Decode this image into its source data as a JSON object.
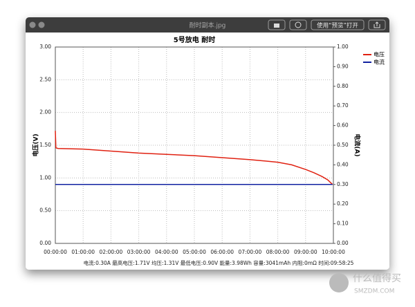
{
  "window": {
    "title": "耐时副本.jpg",
    "open_button": "使用“预览”打开"
  },
  "chart_data": {
    "type": "line",
    "title": "5号放电 耐时",
    "y_label": "电压(V)",
    "y2_label": "电流(A)",
    "x": [
      0,
      0.02,
      0.1,
      1,
      2,
      3,
      4,
      5,
      6,
      7,
      8,
      8.5,
      9,
      9.3,
      9.6,
      9.8,
      9.97
    ],
    "series": [
      {
        "name": "电压",
        "color": "#e02010",
        "values": [
          1.72,
          1.46,
          1.45,
          1.44,
          1.41,
          1.38,
          1.36,
          1.34,
          1.31,
          1.28,
          1.24,
          1.2,
          1.13,
          1.08,
          1.02,
          0.97,
          0.9
        ]
      },
      {
        "name": "电流",
        "color": "#1020a0",
        "axis": "y2",
        "values": [
          0.3,
          0.3,
          0.3,
          0.3,
          0.3,
          0.3,
          0.3,
          0.3,
          0.3,
          0.3,
          0.3,
          0.3,
          0.3,
          0.3,
          0.3,
          0.3,
          0.3
        ]
      }
    ],
    "xlim": [
      0,
      10
    ],
    "xticks": [
      {
        "value": 0,
        "label": "00:00:00"
      },
      {
        "value": 1,
        "label": "01:00:00"
      },
      {
        "value": 2,
        "label": "02:00:00"
      },
      {
        "value": 3,
        "label": "03:00:00"
      },
      {
        "value": 4,
        "label": "04:00:00"
      },
      {
        "value": 5,
        "label": "05:00:00"
      },
      {
        "value": 6,
        "label": "06:00:00"
      },
      {
        "value": 7,
        "label": "07:00:00"
      },
      {
        "value": 8,
        "label": "08:00:00"
      },
      {
        "value": 9,
        "label": "09:00:00"
      },
      {
        "value": 10,
        "label": "10:00:00"
      }
    ],
    "ylim": [
      0,
      3
    ],
    "yticks": [
      {
        "value": 0,
        "label": "0.00"
      },
      {
        "value": 0.5,
        "label": "0.50"
      },
      {
        "value": 1,
        "label": "1.00"
      },
      {
        "value": 1.5,
        "label": "1.50"
      },
      {
        "value": 2,
        "label": "2.00"
      },
      {
        "value": 2.5,
        "label": "2.50"
      },
      {
        "value": 3,
        "label": "3.00"
      }
    ],
    "y2lim": [
      0,
      1
    ],
    "y2ticks": [
      {
        "value": 0,
        "label": "0.00"
      },
      {
        "value": 0.1,
        "label": "0.10"
      },
      {
        "value": 0.2,
        "label": "0.20"
      },
      {
        "value": 0.3,
        "label": "0.30"
      },
      {
        "value": 0.4,
        "label": "0.40"
      },
      {
        "value": 0.5,
        "label": "0.50"
      },
      {
        "value": 0.6,
        "label": "0.60"
      },
      {
        "value": 0.7,
        "label": "0.70"
      },
      {
        "value": 0.8,
        "label": "0.80"
      },
      {
        "value": 0.9,
        "label": "0.90"
      },
      {
        "value": 1,
        "label": "1.00"
      }
    ],
    "grid": true,
    "legend": "right",
    "footer": "电流:0.30A 最高电压:1.71V 均压:1.31V 最低电压:0.90V 能量:3.98Wh 容量:3041mAh 内阻:0mΩ 时间:09:58:25"
  },
  "watermark": {
    "name": "什么值得买",
    "site": "SMZDM.COM"
  }
}
